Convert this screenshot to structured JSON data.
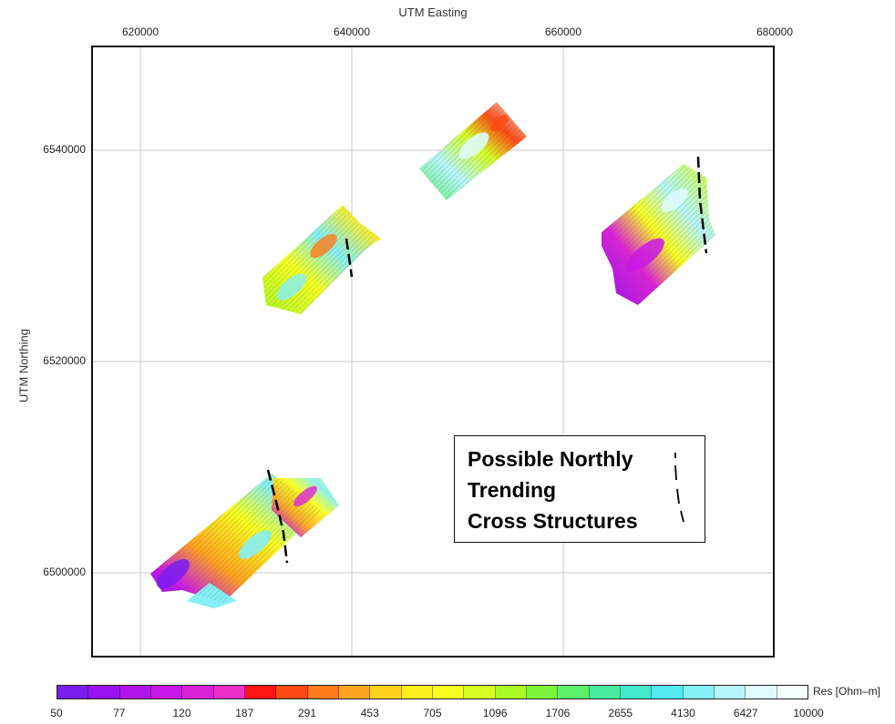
{
  "map": {
    "x_axis_title": "UTM Easting",
    "y_axis_title": "UTM Northing",
    "x_ticks": [
      "620000",
      "640000",
      "660000",
      "680000"
    ],
    "y_ticks": [
      "6540000",
      "6520000",
      "6500000"
    ],
    "legend_box": {
      "lines": [
        "Possible Northly",
        "Trending",
        "Cross Structures"
      ],
      "symbol": "dashed-line-icon"
    }
  },
  "colorbar": {
    "title": "Res [Ohm–m]",
    "labels": [
      "50",
      "77",
      "120",
      "187",
      "291",
      "453",
      "705",
      "1096",
      "1706",
      "2655",
      "4130",
      "6427",
      "10000"
    ],
    "colors": [
      "#7a1cf0",
      "#9a12f2",
      "#b214ee",
      "#c818e8",
      "#dc22d8",
      "#ee2ec8",
      "#ff1414",
      "#ff4a14",
      "#ff7a1a",
      "#ffa41e",
      "#ffd21e",
      "#ffee20",
      "#f6ff20",
      "#d6ff24",
      "#aaf826",
      "#7cf43a",
      "#5cf06a",
      "#4aeaa0",
      "#44e8cc",
      "#52eaf0",
      "#84f0f6",
      "#b6f6fa",
      "#e0fbfc",
      "#f4feff"
    ]
  }
}
